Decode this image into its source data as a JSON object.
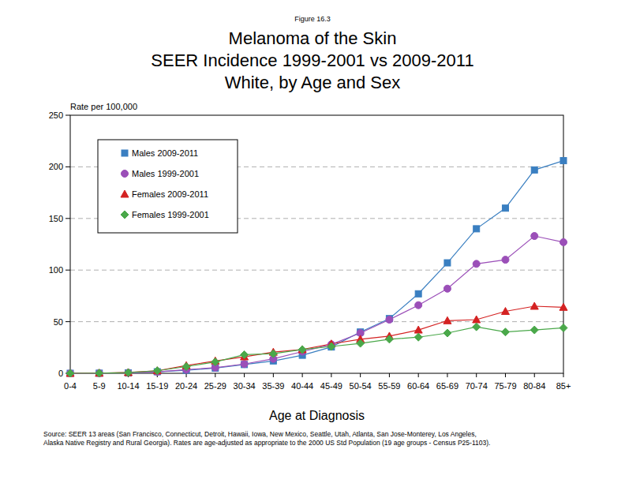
{
  "chart_data": {
    "type": "line",
    "figure_label": "Figure 16.3",
    "title": "Melanoma of the Skin",
    "subtitle": [
      "SEER Incidence 1999-2001 vs 2009-2011",
      "White, by Age and Sex"
    ],
    "y_label": "Rate per 100,000",
    "x_label": "Age at Diagnosis",
    "source": [
      "Source: SEER 13 areas (San Francisco, Connecticut, Detroit, Hawaii, Iowa, New Mexico, Seattle, Utah, Atlanta, San Jose-Monterey, Los Angeles,",
      "Alaska Native Registry and Rural Georgia). Rates are age-adjusted as appropriate to the 2000 US Std Population (19 age groups - Census P25-1103)."
    ],
    "categories": [
      "0-4",
      "5-9",
      "10-14",
      "15-19",
      "20-24",
      "25-29",
      "30-34",
      "35-39",
      "40-44",
      "45-49",
      "50-54",
      "55-59",
      "60-64",
      "65-69",
      "70-74",
      "75-79",
      "80-84",
      "85+"
    ],
    "series": [
      {
        "name": "Males 2009-2011",
        "color": "#3a7fc1",
        "marker": "square",
        "values": [
          0,
          0.1,
          0.4,
          1.5,
          3,
          5,
          8.5,
          12,
          17.5,
          25.5,
          40,
          53,
          77,
          107,
          140,
          160,
          197,
          206
        ]
      },
      {
        "name": "Males 1999-2001",
        "color": "#9b4fb8",
        "marker": "circle",
        "values": [
          0,
          0.1,
          0.5,
          1.5,
          3.5,
          5.5,
          9,
          14,
          21,
          28,
          39,
          52,
          66,
          82,
          106,
          110,
          133,
          127
        ]
      },
      {
        "name": "Females 2009-2011",
        "color": "#d42222",
        "marker": "triangle",
        "values": [
          0,
          0.2,
          0.8,
          2.5,
          7.5,
          12,
          16,
          20.5,
          23,
          28.5,
          33,
          36,
          42,
          51,
          52,
          60,
          65,
          64
        ]
      },
      {
        "name": "Females 1999-2001",
        "color": "#4aa84a",
        "marker": "diamond",
        "values": [
          0,
          0.2,
          0.7,
          2.5,
          6.5,
          11,
          18,
          19,
          23,
          26,
          29,
          33,
          35,
          39,
          45,
          40,
          42,
          44
        ]
      }
    ],
    "ylim": [
      0,
      250
    ],
    "yticks": [
      0,
      50,
      100,
      150,
      200,
      250
    ],
    "grid": true,
    "legend": "upper left"
  }
}
